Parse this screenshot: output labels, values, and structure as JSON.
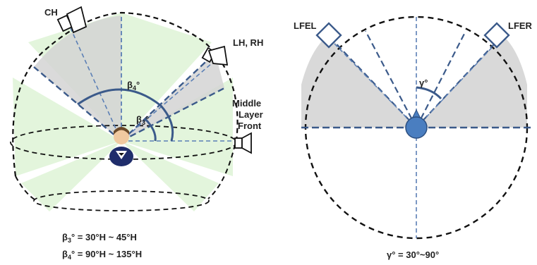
{
  "left_diagram": {
    "speakers": {
      "ch": "CH",
      "lh_rh": "LH, RH",
      "middle_front_line1": "Middle",
      "middle_front_line2": "Layer",
      "middle_front_line3": "Front"
    },
    "angle_labels": {
      "beta4": {
        "symbol": "β",
        "sub": "4",
        "suffix": "°"
      },
      "beta3": {
        "symbol": "β",
        "sub": "3",
        "suffix": "°"
      }
    },
    "formulas": {
      "beta3": {
        "symbol": "β",
        "sub": "3",
        "text": "° = 30°H ~ 45°H"
      },
      "beta4": {
        "symbol": "β",
        "sub": "4",
        "text": "° = 90°H ~ 135°H"
      }
    }
  },
  "right_diagram": {
    "speakers": {
      "left": "LFEL",
      "right": "LFER"
    },
    "angle_label": "γ°",
    "formula": "γ° = 30°~90°"
  },
  "colors": {
    "sector_blue": "#3b5a8a",
    "dashed_blue": "#5b7fb5",
    "light_green": "#e3f5dc",
    "gray_fill": "#d9d9d9",
    "center_dot": "#4a7ec0"
  }
}
